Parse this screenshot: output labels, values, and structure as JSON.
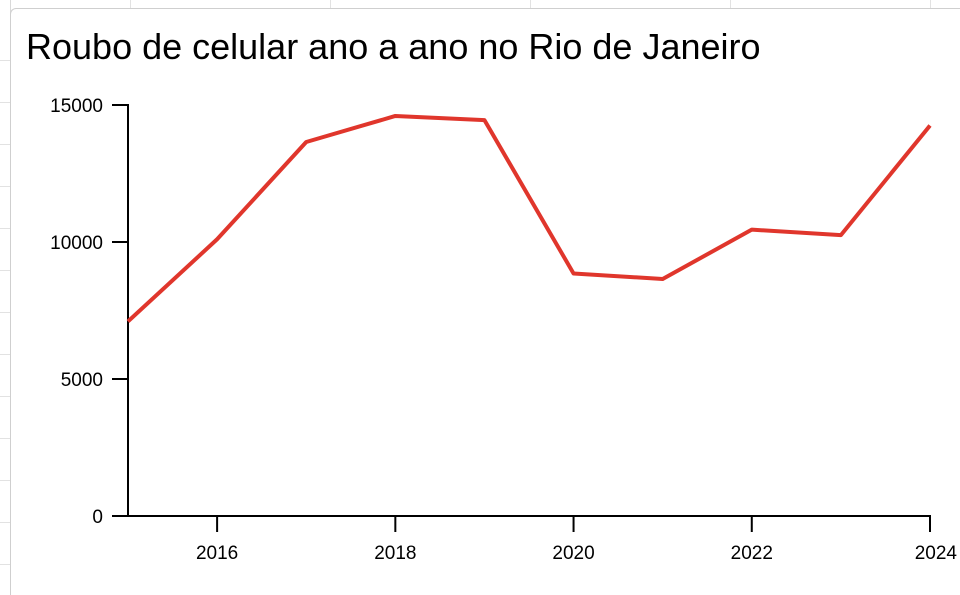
{
  "chart_data": {
    "type": "line",
    "title": "Roubo de celular ano a ano no Rio de Janeiro",
    "xlabel": "",
    "ylabel": "",
    "x": [
      2015,
      2016,
      2017,
      2018,
      2019,
      2020,
      2021,
      2022,
      2023,
      2024
    ],
    "series": [
      {
        "values": [
          7100,
          10100,
          13650,
          14600,
          14450,
          8850,
          8650,
          10450,
          10250,
          14250
        ],
        "color": "#e0362c"
      }
    ],
    "xlim": [
      2015,
      2024
    ],
    "ylim": [
      0,
      15000
    ],
    "x_ticks": [
      "2016",
      "2018",
      "2020",
      "2022",
      "2024"
    ],
    "y_ticks": [
      "0",
      "5000",
      "10000",
      "15000"
    ],
    "grid": false,
    "legend": "none"
  }
}
